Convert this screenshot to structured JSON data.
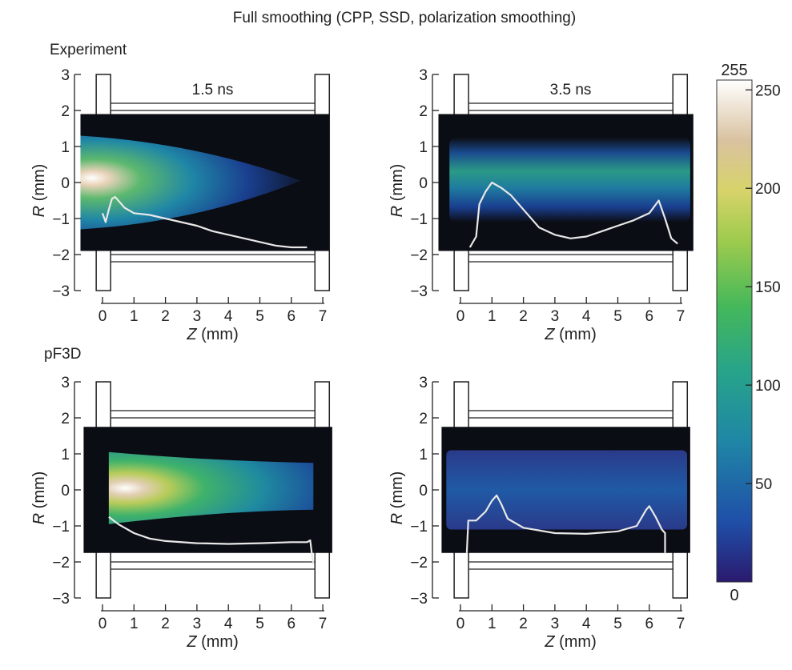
{
  "title": "Full smoothing (CPP, SSD, polarization smoothing)",
  "row_labels": [
    "Experiment",
    "pF3D"
  ],
  "colorbar": {
    "max_label": "255",
    "min_label": "0",
    "ticks": [
      {
        "value": 50,
        "label": "50"
      },
      {
        "value": 100,
        "label": "100"
      },
      {
        "value": 150,
        "label": "150"
      },
      {
        "value": 200,
        "label": "200"
      },
      {
        "value": 250,
        "label": "250"
      }
    ],
    "range": [
      0,
      255
    ],
    "colormap": [
      "#2a1a6e",
      "#1f4fa8",
      "#1f86a6",
      "#27a48a",
      "#45b85a",
      "#9ecb4d",
      "#d7d36a",
      "#d9c2a0",
      "#ffffff"
    ]
  },
  "chart_data": [
    {
      "type": "heatmap",
      "panel": "experiment-1.5ns",
      "row": "Experiment",
      "time_label": "1.5 ns",
      "xlabel_italic": "Z",
      "xlabel_unit": "(mm)",
      "ylabel_italic": "R",
      "ylabel_unit": "(mm)",
      "xlim": [
        -0.15,
        7.1
      ],
      "ylim": [
        -3,
        3
      ],
      "xticks": [
        0,
        1,
        2,
        3,
        4,
        5,
        6,
        7
      ],
      "yticks": [
        3,
        2,
        1,
        0,
        -1,
        -2,
        -3
      ],
      "ytick_labels": [
        "3",
        "2",
        "1",
        "0",
        "−1",
        "−2",
        "−3"
      ],
      "image_extent": {
        "z": [
          -0.7,
          7.2
        ],
        "r": [
          -1.9,
          1.9
        ]
      },
      "lineout": {
        "z": [
          0.0,
          0.1,
          0.2,
          0.3,
          0.4,
          0.5,
          0.7,
          1.0,
          1.5,
          2.0,
          2.5,
          3.0,
          3.5,
          4.0,
          4.5,
          5.0,
          5.5,
          6.0,
          6.5
        ],
        "r": [
          -0.85,
          -1.1,
          -0.75,
          -0.45,
          -0.4,
          -0.5,
          -0.7,
          -0.85,
          -0.9,
          -1.0,
          -1.1,
          -1.2,
          -1.35,
          -1.45,
          -1.55,
          -1.65,
          -1.75,
          -1.8,
          -1.8
        ]
      }
    },
    {
      "type": "heatmap",
      "panel": "experiment-3.5ns",
      "row": "Experiment",
      "time_label": "3.5 ns",
      "xlabel_italic": "Z",
      "xlabel_unit": "(mm)",
      "ylabel_italic": "R",
      "ylabel_unit": "(mm)",
      "xlim": [
        -0.15,
        7.1
      ],
      "ylim": [
        -3,
        3
      ],
      "xticks": [
        0,
        1,
        2,
        3,
        4,
        5,
        6,
        7
      ],
      "yticks": [
        3,
        2,
        1,
        0,
        -1,
        -2,
        -3
      ],
      "ytick_labels": [
        "3",
        "2",
        "1",
        "0",
        "−1",
        "−2",
        "−3"
      ],
      "image_extent": {
        "z": [
          -0.7,
          7.4
        ],
        "r": [
          -1.9,
          1.9
        ]
      },
      "lineout": {
        "z": [
          0.3,
          0.5,
          0.6,
          0.8,
          1.0,
          1.3,
          1.6,
          1.9,
          2.2,
          2.5,
          3.0,
          3.5,
          4.0,
          4.5,
          5.0,
          5.5,
          6.0,
          6.3,
          6.5,
          6.7,
          6.9
        ],
        "r": [
          -1.8,
          -1.5,
          -0.6,
          -0.25,
          0.0,
          -0.15,
          -0.35,
          -0.65,
          -0.95,
          -1.25,
          -1.45,
          -1.55,
          -1.5,
          -1.35,
          -1.2,
          -1.05,
          -0.85,
          -0.5,
          -1.0,
          -1.55,
          -1.7
        ]
      }
    },
    {
      "type": "heatmap",
      "panel": "pf3d-1.5ns",
      "row": "pF3D",
      "xlabel_italic": "Z",
      "xlabel_unit": "(mm)",
      "ylabel_italic": "R",
      "ylabel_unit": "(mm)",
      "xlim": [
        -0.15,
        7.1
      ],
      "ylim": [
        -3,
        3
      ],
      "xticks": [
        0,
        1,
        2,
        3,
        4,
        5,
        6,
        7
      ],
      "yticks": [
        3,
        2,
        1,
        0,
        -1,
        -2,
        -3
      ],
      "ytick_labels": [
        "3",
        "2",
        "1",
        "0",
        "−1",
        "−2",
        "−3"
      ],
      "image_extent": {
        "z": [
          -0.6,
          7.3
        ],
        "r": [
          -1.75,
          1.75
        ]
      },
      "lineout": {
        "z": [
          0.2,
          0.5,
          1.0,
          1.5,
          2.0,
          3.0,
          4.0,
          5.0,
          6.0,
          6.5,
          6.6,
          6.65,
          6.7
        ],
        "r": [
          -0.75,
          -0.95,
          -1.2,
          -1.35,
          -1.42,
          -1.48,
          -1.5,
          -1.48,
          -1.45,
          -1.45,
          -1.4,
          -1.75,
          -2.05
        ]
      }
    },
    {
      "type": "heatmap",
      "panel": "pf3d-3.5ns",
      "row": "pF3D",
      "xlabel_italic": "Z",
      "xlabel_unit": "(mm)",
      "ylabel_italic": "R",
      "ylabel_unit": "(mm)",
      "xlim": [
        -0.15,
        7.1
      ],
      "ylim": [
        -3,
        3
      ],
      "xticks": [
        0,
        1,
        2,
        3,
        4,
        5,
        6,
        7
      ],
      "yticks": [
        3,
        2,
        1,
        0,
        -1,
        -2,
        -3
      ],
      "ytick_labels": [
        "3",
        "2",
        "1",
        "0",
        "−1",
        "−2",
        "−3"
      ],
      "image_extent": {
        "z": [
          -0.6,
          7.3
        ],
        "r": [
          -1.75,
          1.75
        ]
      },
      "lineout": {
        "z": [
          0.2,
          0.25,
          0.5,
          0.8,
          1.0,
          1.15,
          1.3,
          1.5,
          2.0,
          3.0,
          4.0,
          5.0,
          5.6,
          5.9,
          6.0,
          6.2,
          6.4,
          6.5,
          6.5
        ],
        "r": [
          -1.75,
          -0.85,
          -0.85,
          -0.6,
          -0.3,
          -0.15,
          -0.4,
          -0.8,
          -1.05,
          -1.2,
          -1.22,
          -1.15,
          -1.0,
          -0.55,
          -0.45,
          -0.75,
          -1.1,
          -1.2,
          -1.75
        ]
      }
    }
  ]
}
